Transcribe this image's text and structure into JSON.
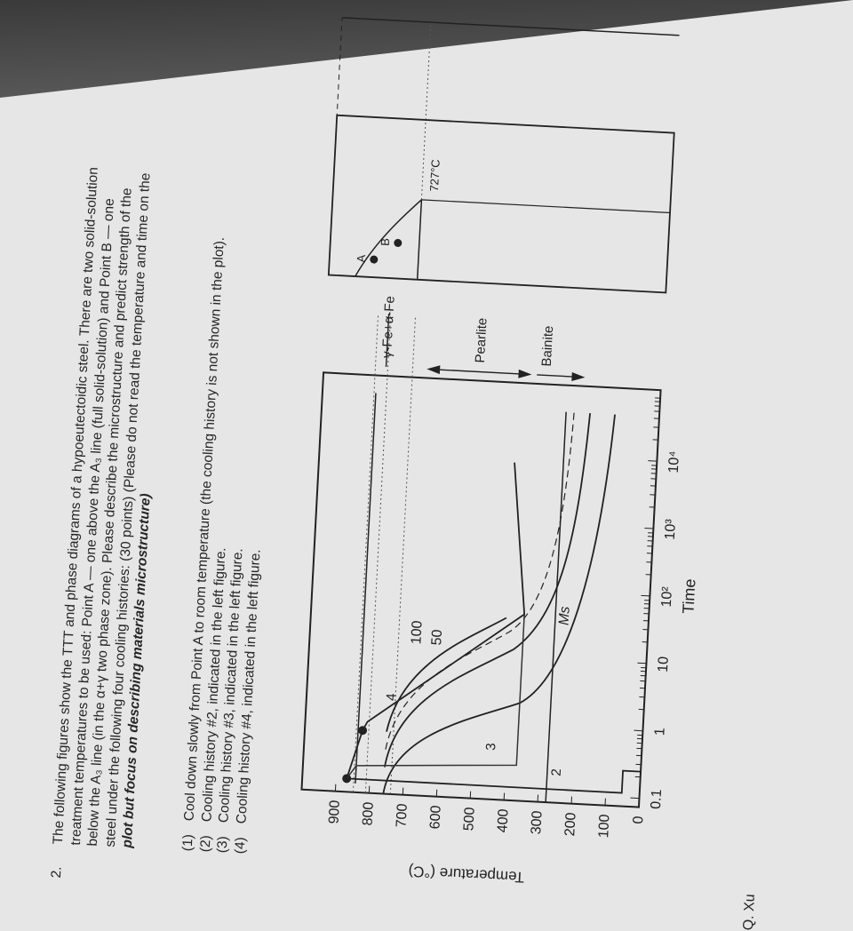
{
  "question": {
    "number": "2.",
    "lines": [
      "The following figures show the TTT and phase diagrams of a hypoeutectoidic steel. There are two solid-solution",
      "treatment temperatures to be used: Point A — one above the A₃ line (full solid-solution) and Point B — one",
      "below the A₃ line (in the α+γ two phase zone). Please describe the microstructure and predict strength of the",
      "steel under the following four cooling histories: (30 points) (Please do not read the temperature and time on the",
      "plot but focus on describing materials microstructure)"
    ],
    "items": [
      {
        "num": "(1)",
        "text": "Cool down slowly from Point A to room temperature (the cooling history is not shown in the plot)."
      },
      {
        "num": "(2)",
        "text": "Cooling history #2, indicated in the left figure."
      },
      {
        "num": "(3)",
        "text": "Cooling history #3, indicated in the left figure."
      },
      {
        "num": "(4)",
        "text": "Cooling history #4, indicated in the left figure."
      }
    ]
  },
  "ttt_diagram": {
    "y_axis_label": "Temperature (°C)",
    "x_axis_label": "Time",
    "y_ticks": [
      "0",
      "100",
      "200",
      "300",
      "400",
      "500",
      "600",
      "700",
      "800",
      "900"
    ],
    "x_ticks": [
      "0.1",
      "1",
      "10",
      "10²",
      "10³",
      "10⁴"
    ],
    "ms_label": "Ms",
    "pct_labels": [
      "50",
      "100"
    ],
    "history_labels": [
      "2",
      "3",
      "4"
    ],
    "phase_labels": [
      "γ-Fe+α-Fe",
      "Pearlite",
      "Bainite"
    ]
  },
  "phase_diagram": {
    "temperature_label": "727°C",
    "points": [
      "A",
      "B"
    ]
  },
  "author": "Q. Xu"
}
